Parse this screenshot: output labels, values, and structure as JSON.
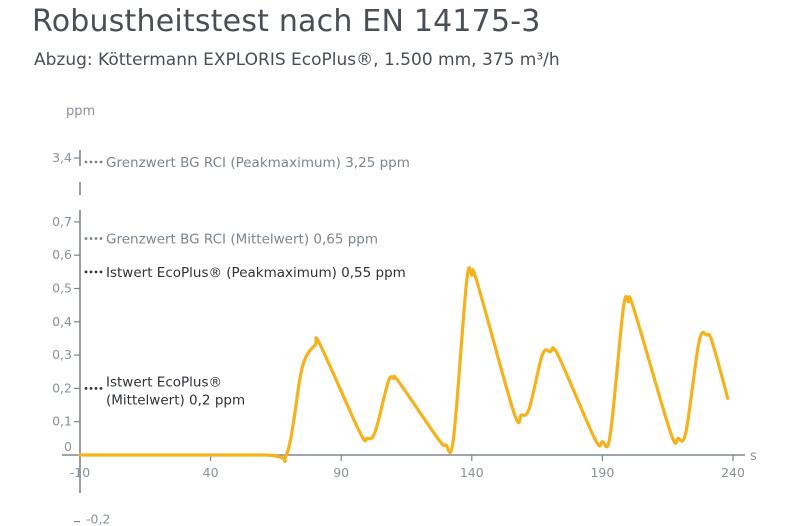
{
  "header": {
    "title": "Robustheitstest nach EN 14175-3",
    "subtitle": "Abzug: Köttermann EXPLORIS EcoPlus®, 1.500 mm, 375 m³/h"
  },
  "colors": {
    "series": "#f5b21c",
    "axis": "#7d868d",
    "text_gray": "#7d868d",
    "text_dark": "#2f3439"
  },
  "chart_data": {
    "type": "line",
    "title": "Robustheitstest nach EN 14175-3",
    "subtitle": "Abzug: Köttermann EXPLORIS EcoPlus®, 1.500 mm, 375 m³/h",
    "xlabel": "s",
    "ylabel": "ppm",
    "xlim": [
      -10,
      240
    ],
    "ylim": [
      -0.2,
      3.4
    ],
    "y_axis_break": true,
    "grid": false,
    "x_ticks": [
      {
        "value": -10,
        "label": "-10"
      },
      {
        "value": 40,
        "label": "40"
      },
      {
        "value": 90,
        "label": "90"
      },
      {
        "value": 140,
        "label": "140"
      },
      {
        "value": 190,
        "label": "190"
      },
      {
        "value": 240,
        "label": "240"
      }
    ],
    "y_ticks": [
      {
        "value": 3.4,
        "label": "3,4"
      },
      {
        "value": 0.7,
        "label": "0,7"
      },
      {
        "value": 0.6,
        "label": "0,6"
      },
      {
        "value": 0.5,
        "label": "0,5"
      },
      {
        "value": 0.4,
        "label": "0,4"
      },
      {
        "value": 0.3,
        "label": "0,3"
      },
      {
        "value": 0.2,
        "label": "0,2"
      },
      {
        "value": 0.1,
        "label": "0,1"
      },
      {
        "value": 0,
        "label": "0"
      },
      {
        "value": -0.2,
        "label": "-0,2"
      }
    ],
    "series": [
      {
        "x": [
          -10,
          60,
          69,
          75,
          80,
          82,
          97,
          100,
          103,
          108,
          110,
          112,
          127,
          130,
          133,
          138,
          140,
          142,
          156,
          159,
          162,
          167,
          170,
          173,
          187,
          190,
          193,
          198,
          200,
          202,
          216,
          219,
          222,
          227,
          230,
          232,
          238
        ],
        "y": [
          0,
          0,
          0,
          0.26,
          0.33,
          0.33,
          0.07,
          0.05,
          0.07,
          0.22,
          0.23,
          0.22,
          0.05,
          0.03,
          0.05,
          0.52,
          0.54,
          0.52,
          0.13,
          0.12,
          0.14,
          0.3,
          0.31,
          0.3,
          0.05,
          0.04,
          0.06,
          0.44,
          0.46,
          0.44,
          0.07,
          0.05,
          0.07,
          0.34,
          0.36,
          0.34,
          0.17
        ]
      }
    ],
    "annotations": [
      {
        "y": 3.25,
        "label": "Grenzwert BG RCI (Peakmaximum) 3,25 ppm",
        "style": "gray"
      },
      {
        "y": 0.65,
        "label": "Grenzwert BG RCI (Mittelwert) 0,65 ppm",
        "style": "gray"
      },
      {
        "y": 0.55,
        "label": "Istwert EcoPlus® (Peakmaximum) 0,55 ppm",
        "style": "dark"
      },
      {
        "y": 0.2,
        "lines": [
          "Istwert EcoPlus®",
          "(Mittelwert) 0,2 ppm"
        ],
        "style": "dark"
      }
    ]
  }
}
